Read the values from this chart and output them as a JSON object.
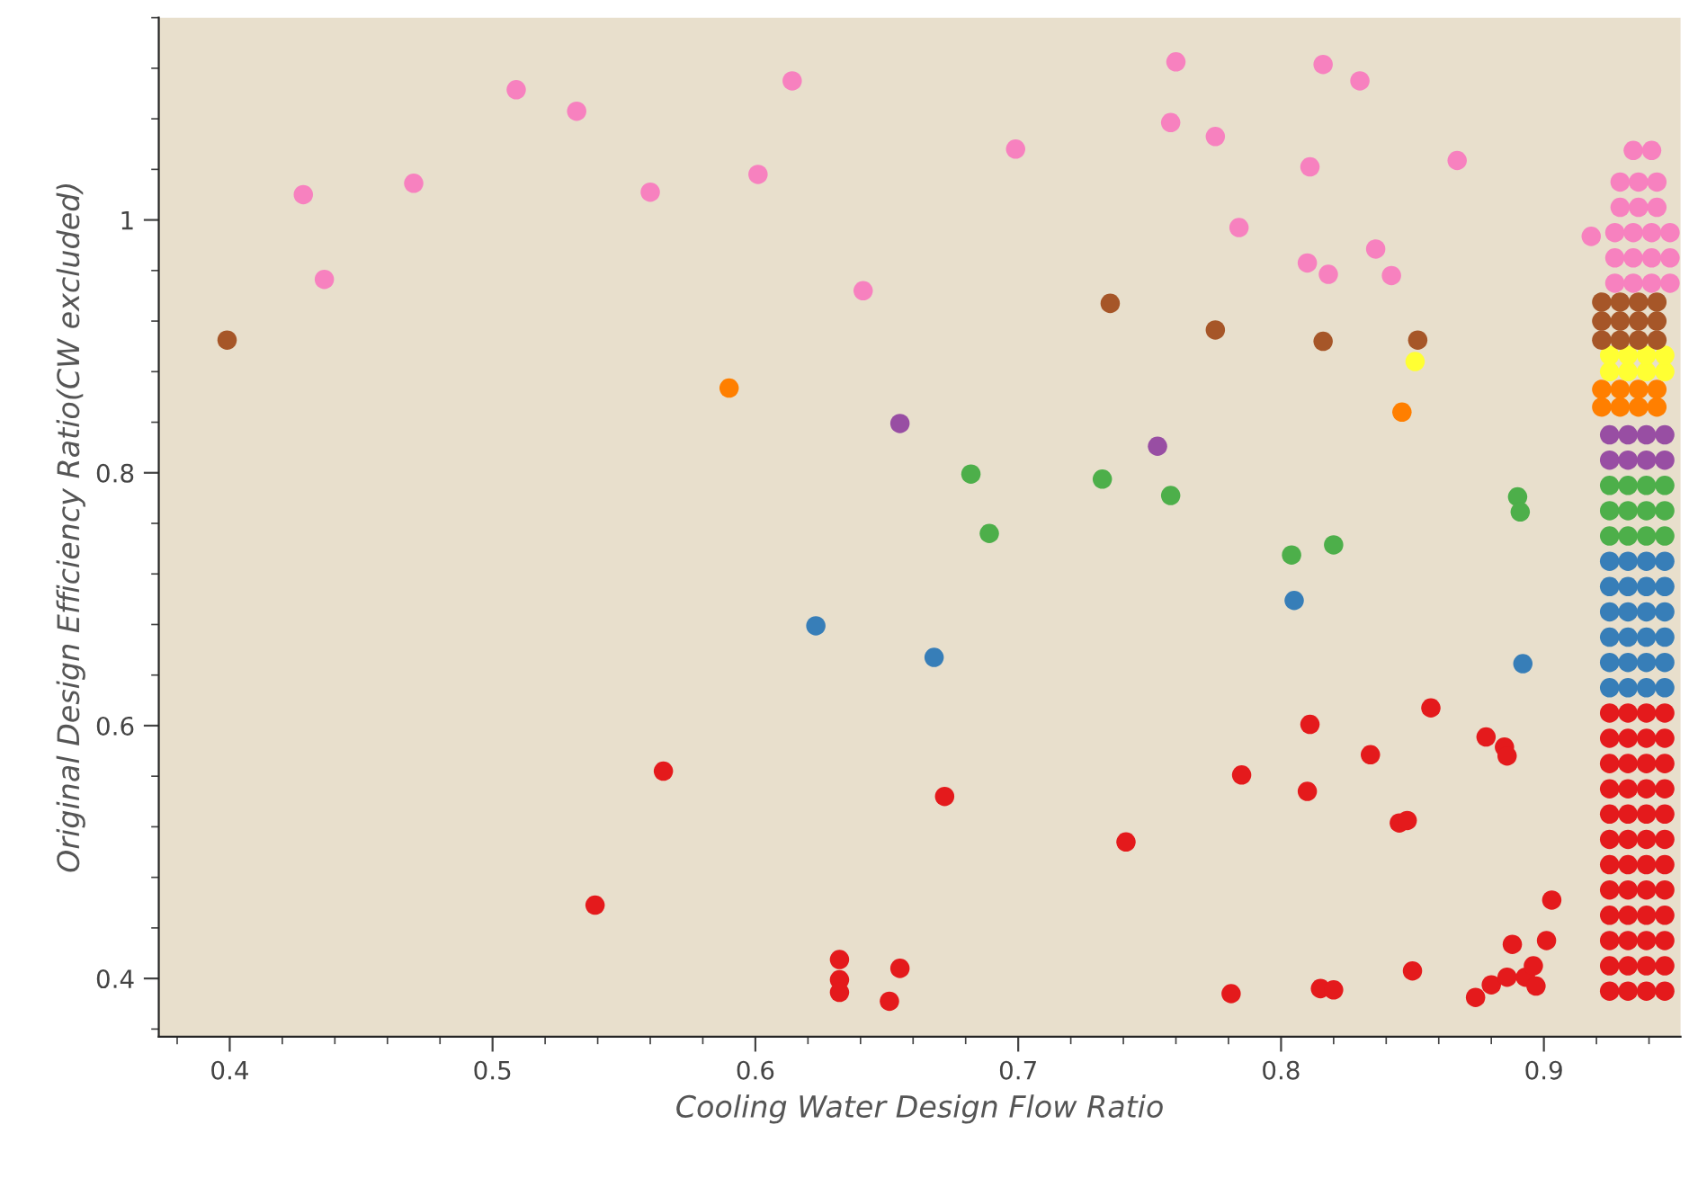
{
  "chart_data": {
    "type": "scatter",
    "xlabel": "Cooling Water Design Flow Ratio",
    "ylabel": "Original Design Efficiency Ratio(CW excluded)",
    "xlim": [
      0.373,
      0.952
    ],
    "ylim": [
      0.354,
      1.16
    ],
    "xticks": [
      0.4,
      0.5,
      0.6,
      0.7,
      0.8,
      0.9
    ],
    "yticks": [
      0.4,
      0.6,
      0.8,
      1
    ],
    "marker": "circle",
    "grid": false,
    "series": [
      {
        "color": "#e41a1c",
        "x": [
          0.565,
          0.539,
          0.672,
          0.741,
          0.785,
          0.811,
          0.81,
          0.834,
          0.857,
          0.845,
          0.848,
          0.878,
          0.885,
          0.886,
          0.632,
          0.632,
          0.632,
          0.655,
          0.651,
          0.781,
          0.815,
          0.82,
          0.85,
          0.888,
          0.874,
          0.88,
          0.886,
          0.893,
          0.897,
          0.896,
          0.901,
          0.903,
          0.925,
          0.932,
          0.939,
          0.946,
          0.925,
          0.932,
          0.939,
          0.946,
          0.925,
          0.932,
          0.939,
          0.946,
          0.925,
          0.932,
          0.939,
          0.946,
          0.925,
          0.932,
          0.939,
          0.946,
          0.925,
          0.932,
          0.939,
          0.946,
          0.925,
          0.932,
          0.939,
          0.946,
          0.925,
          0.932,
          0.939,
          0.946,
          0.925,
          0.932,
          0.939,
          0.946,
          0.925,
          0.932,
          0.939,
          0.946,
          0.925,
          0.932,
          0.939,
          0.946,
          0.925,
          0.932,
          0.939,
          0.946
        ],
        "values": [
          0.564,
          0.458,
          0.544,
          0.508,
          0.561,
          0.601,
          0.548,
          0.577,
          0.614,
          0.523,
          0.525,
          0.591,
          0.583,
          0.576,
          0.415,
          0.399,
          0.389,
          0.408,
          0.382,
          0.388,
          0.392,
          0.391,
          0.406,
          0.427,
          0.385,
          0.395,
          0.401,
          0.401,
          0.394,
          0.41,
          0.43,
          0.462,
          0.39,
          0.39,
          0.39,
          0.39,
          0.41,
          0.41,
          0.41,
          0.41,
          0.43,
          0.43,
          0.43,
          0.43,
          0.45,
          0.45,
          0.45,
          0.45,
          0.47,
          0.47,
          0.47,
          0.47,
          0.49,
          0.49,
          0.49,
          0.49,
          0.51,
          0.51,
          0.51,
          0.51,
          0.53,
          0.53,
          0.53,
          0.53,
          0.55,
          0.55,
          0.55,
          0.55,
          0.57,
          0.57,
          0.57,
          0.57,
          0.59,
          0.59,
          0.59,
          0.59,
          0.61,
          0.61,
          0.61,
          0.61
        ]
      },
      {
        "color": "#377eb8",
        "x": [
          0.623,
          0.668,
          0.805,
          0.892,
          0.925,
          0.932,
          0.939,
          0.946,
          0.925,
          0.932,
          0.939,
          0.946,
          0.925,
          0.932,
          0.939,
          0.946,
          0.925,
          0.932,
          0.939,
          0.946,
          0.925,
          0.932,
          0.939,
          0.946,
          0.925,
          0.932,
          0.939,
          0.946
        ],
        "values": [
          0.679,
          0.654,
          0.699,
          0.649,
          0.63,
          0.63,
          0.63,
          0.63,
          0.65,
          0.65,
          0.65,
          0.65,
          0.67,
          0.67,
          0.67,
          0.67,
          0.69,
          0.69,
          0.69,
          0.69,
          0.71,
          0.71,
          0.71,
          0.71,
          0.73,
          0.73,
          0.73,
          0.73
        ]
      },
      {
        "color": "#4daf4a",
        "x": [
          0.682,
          0.689,
          0.732,
          0.758,
          0.804,
          0.82,
          0.89,
          0.891,
          0.925,
          0.932,
          0.939,
          0.946,
          0.925,
          0.932,
          0.939,
          0.946,
          0.925,
          0.932,
          0.939,
          0.946
        ],
        "values": [
          0.799,
          0.752,
          0.795,
          0.782,
          0.735,
          0.743,
          0.781,
          0.769,
          0.75,
          0.75,
          0.75,
          0.75,
          0.77,
          0.77,
          0.77,
          0.77,
          0.79,
          0.79,
          0.79,
          0.79
        ]
      },
      {
        "color": "#984ea3",
        "x": [
          0.655,
          0.753,
          0.925,
          0.932,
          0.939,
          0.946,
          0.925,
          0.932,
          0.939,
          0.946
        ],
        "values": [
          0.839,
          0.821,
          0.81,
          0.81,
          0.81,
          0.81,
          0.83,
          0.83,
          0.83,
          0.83
        ]
      },
      {
        "color": "#ff7f00",
        "x": [
          0.59,
          0.846,
          0.922,
          0.929,
          0.936,
          0.943,
          0.922,
          0.929,
          0.936,
          0.943
        ],
        "values": [
          0.867,
          0.848,
          0.852,
          0.852,
          0.852,
          0.852,
          0.866,
          0.866,
          0.866,
          0.866
        ]
      },
      {
        "color": "#ffff33",
        "x": [
          0.851,
          0.925,
          0.932,
          0.939,
          0.946,
          0.925,
          0.932,
          0.939,
          0.946
        ],
        "values": [
          0.888,
          0.88,
          0.88,
          0.88,
          0.88,
          0.893,
          0.893,
          0.893,
          0.893
        ]
      },
      {
        "color": "#a65628",
        "x": [
          0.399,
          0.735,
          0.775,
          0.816,
          0.852,
          0.922,
          0.929,
          0.936,
          0.943,
          0.922,
          0.929,
          0.936,
          0.943,
          0.922,
          0.929,
          0.936,
          0.943
        ],
        "values": [
          0.905,
          0.934,
          0.913,
          0.904,
          0.905,
          0.905,
          0.905,
          0.905,
          0.905,
          0.92,
          0.92,
          0.92,
          0.92,
          0.935,
          0.935,
          0.935,
          0.935
        ]
      },
      {
        "color": "#f781bf",
        "x": [
          0.428,
          0.436,
          0.47,
          0.509,
          0.532,
          0.56,
          0.601,
          0.614,
          0.641,
          0.699,
          0.76,
          0.758,
          0.775,
          0.784,
          0.811,
          0.816,
          0.81,
          0.818,
          0.83,
          0.836,
          0.842,
          0.867,
          0.918,
          0.927,
          0.934,
          0.941,
          0.948,
          0.927,
          0.934,
          0.941,
          0.948,
          0.927,
          0.934,
          0.941,
          0.948,
          0.929,
          0.936,
          0.943,
          0.929,
          0.936,
          0.943,
          0.934,
          0.941
        ],
        "values": [
          1.02,
          0.953,
          1.029,
          1.103,
          1.086,
          1.022,
          1.036,
          1.11,
          0.944,
          1.056,
          1.125,
          1.077,
          1.066,
          0.994,
          1.042,
          1.123,
          0.966,
          0.957,
          1.11,
          0.977,
          0.956,
          1.047,
          0.987,
          0.95,
          0.95,
          0.95,
          0.95,
          0.97,
          0.97,
          0.97,
          0.97,
          0.99,
          0.99,
          0.99,
          0.99,
          1.01,
          1.01,
          1.01,
          1.03,
          1.03,
          1.03,
          1.055,
          1.055
        ]
      }
    ]
  }
}
